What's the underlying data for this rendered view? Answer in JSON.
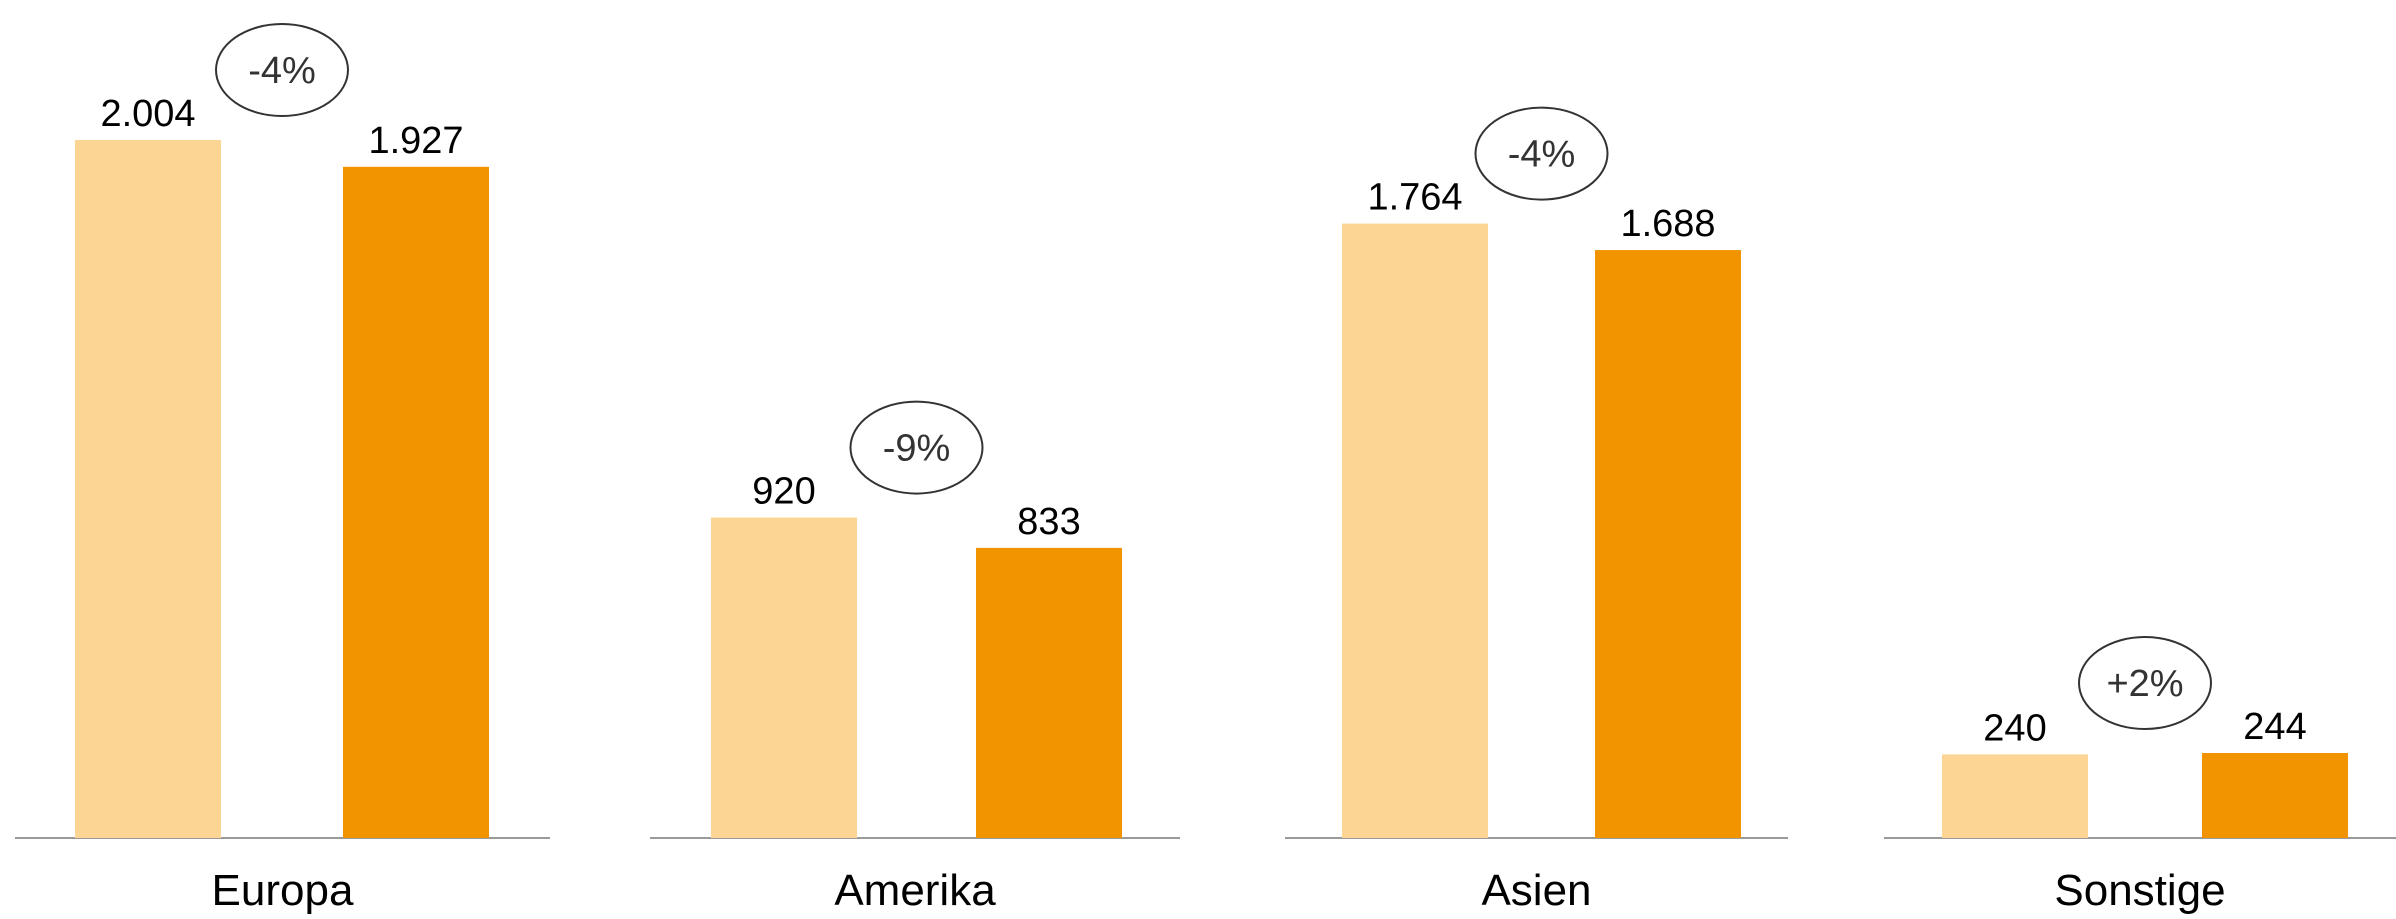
{
  "chart_data": {
    "type": "bar",
    "categories": [
      "Europa",
      "Amerika",
      "Asien",
      "Sonstige"
    ],
    "series": [
      {
        "values": [
          2004,
          920,
          1764,
          240
        ],
        "labels": [
          "2.004",
          "920",
          "1.764",
          "240"
        ]
      },
      {
        "values": [
          1927,
          833,
          1688,
          244
        ],
        "labels": [
          "1.927",
          "833",
          "1.688",
          "244"
        ]
      }
    ],
    "changes": [
      "-4%",
      "-9%",
      "-4%",
      "+2%"
    ],
    "grid": false,
    "colors": {
      "series1": "#FCD594",
      "series2": "#F29400",
      "axis": "#9A9A9A",
      "ellipse_stroke": "#333333"
    }
  }
}
